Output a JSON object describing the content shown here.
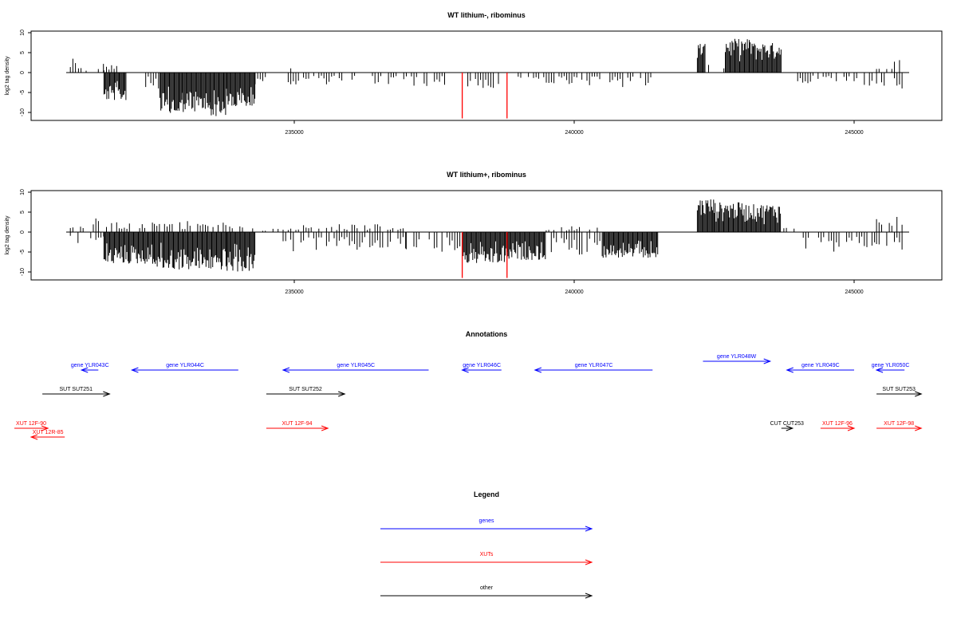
{
  "chart_data": [
    {
      "type": "bar",
      "title": "WT lithium-, ribominus",
      "xlabel": "",
      "ylabel": "log2 tag density",
      "xlim": [
        230000,
        246500
      ],
      "ylim": [
        -12,
        10.5
      ],
      "xticks": [
        235000,
        240000,
        245000
      ],
      "xtick_labels": [
        "235000",
        "240000",
        "245000"
      ],
      "yticks": [
        10,
        5,
        0,
        -5,
        -10
      ],
      "ytick_labels": [
        "10",
        "5",
        "0",
        "-5",
        "-10"
      ],
      "series": [
        {
          "color": "#000000",
          "segments": [
            {
              "x0": 231000,
              "x1": 231100,
              "y": 3.5
            },
            {
              "x0": 231100,
              "x1": 231300,
              "y": 1.5
            },
            {
              "x0": 231500,
              "x1": 231600,
              "y": 2.5
            },
            {
              "x0": 231600,
              "x1": 232000,
              "y": 2.0
            },
            {
              "x0": 231600,
              "x1": 232000,
              "y": -7.0
            },
            {
              "x0": 232300,
              "x1": 232600,
              "y": -4.0
            },
            {
              "x0": 232600,
              "x1": 233000,
              "y": -11.0
            },
            {
              "x0": 233000,
              "x1": 233500,
              "y": -10.0
            },
            {
              "x0": 233500,
              "x1": 233800,
              "y": -11.0
            },
            {
              "x0": 233800,
              "x1": 234300,
              "y": -9.0
            },
            {
              "x0": 234300,
              "x1": 234500,
              "y": -3.0
            },
            {
              "x0": 234800,
              "x1": 235000,
              "y": 2.0
            },
            {
              "x0": 234800,
              "x1": 236500,
              "y": -3.0
            },
            {
              "x0": 236500,
              "x1": 237700,
              "y": -3.5
            },
            {
              "x0": 238100,
              "x1": 238700,
              "y": -4.0
            },
            {
              "x0": 239000,
              "x1": 240000,
              "y": -3.5
            },
            {
              "x0": 240000,
              "x1": 241400,
              "y": -4.0
            },
            {
              "x0": 242200,
              "x1": 242350,
              "y": 7.5
            },
            {
              "x0": 242400,
              "x1": 242700,
              "y": 2.5
            },
            {
              "x0": 242700,
              "x1": 243200,
              "y": 8.5
            },
            {
              "x0": 243200,
              "x1": 243700,
              "y": 7.5
            },
            {
              "x0": 243900,
              "x1": 244500,
              "y": -3.0
            },
            {
              "x0": 244500,
              "x1": 245000,
              "y": -3.0
            },
            {
              "x0": 245000,
              "x1": 245400,
              "y": -3.5
            },
            {
              "x0": 245400,
              "x1": 245900,
              "y": 3.5
            },
            {
              "x0": 245400,
              "x1": 245900,
              "y": -4.5
            }
          ]
        },
        {
          "color": "#ff0000",
          "lines": [
            {
              "x": 238000,
              "y": -11.5
            },
            {
              "x": 238800,
              "y": -11.5
            }
          ]
        }
      ]
    },
    {
      "type": "bar",
      "title": "WT lithium+, ribominus",
      "xlabel": "",
      "ylabel": "log2 tag density",
      "xlim": [
        230000,
        246500
      ],
      "ylim": [
        -12,
        10.5
      ],
      "xticks": [
        235000,
        240000,
        245000
      ],
      "xtick_labels": [
        "235000",
        "240000",
        "245000"
      ],
      "yticks": [
        10,
        5,
        0,
        -5,
        -10
      ],
      "ytick_labels": [
        "10",
        "5",
        "0",
        "-5",
        "-10"
      ],
      "series": [
        {
          "color": "#000000",
          "segments": [
            {
              "x0": 231000,
              "x1": 231600,
              "y": 4.0
            },
            {
              "x0": 231000,
              "x1": 231600,
              "y": -3.0
            },
            {
              "x0": 231600,
              "x1": 232500,
              "y": 2.5
            },
            {
              "x0": 231600,
              "x1": 232500,
              "y": -8.0
            },
            {
              "x0": 232500,
              "x1": 233800,
              "y": 3.0
            },
            {
              "x0": 232500,
              "x1": 233800,
              "y": -9.5
            },
            {
              "x0": 233800,
              "x1": 234300,
              "y": 1.5
            },
            {
              "x0": 233800,
              "x1": 234300,
              "y": -10.0
            },
            {
              "x0": 234300,
              "x1": 234800,
              "y": 1.0
            },
            {
              "x0": 234800,
              "x1": 237000,
              "y": 2.0
            },
            {
              "x0": 234800,
              "x1": 237000,
              "y": -5.0
            },
            {
              "x0": 237000,
              "x1": 238000,
              "y": -5.0
            },
            {
              "x0": 238000,
              "x1": 238800,
              "y": -8.0
            },
            {
              "x0": 238800,
              "x1": 239500,
              "y": -7.0
            },
            {
              "x0": 239500,
              "x1": 240500,
              "y": 1.5
            },
            {
              "x0": 239500,
              "x1": 240500,
              "y": -6.0
            },
            {
              "x0": 240500,
              "x1": 241500,
              "y": -6.5
            },
            {
              "x0": 242200,
              "x1": 242500,
              "y": 8.5
            },
            {
              "x0": 242500,
              "x1": 243000,
              "y": 7.5
            },
            {
              "x0": 243000,
              "x1": 243700,
              "y": 7.0
            },
            {
              "x0": 243700,
              "x1": 244000,
              "y": 3.0
            },
            {
              "x0": 244000,
              "x1": 245000,
              "y": -5.0
            },
            {
              "x0": 245000,
              "x1": 245400,
              "y": -4.5
            },
            {
              "x0": 245400,
              "x1": 245900,
              "y": 5.0
            },
            {
              "x0": 245400,
              "x1": 245900,
              "y": -5.5
            }
          ]
        },
        {
          "color": "#ff0000",
          "lines": [
            {
              "x": 238000,
              "y": -11.5
            },
            {
              "x": 238800,
              "y": -11.5
            }
          ]
        }
      ]
    }
  ],
  "annotations": {
    "title": "Annotations",
    "genes": [
      {
        "label": "gene YLR043C",
        "start": 231500,
        "end": 231200,
        "row": 0
      },
      {
        "label": "gene YLR044C",
        "start": 234000,
        "end": 232100,
        "row": 0
      },
      {
        "label": "gene YLR045C",
        "start": 237400,
        "end": 234800,
        "row": 0
      },
      {
        "label": "gene YLR046C",
        "start": 238700,
        "end": 238000,
        "row": 0
      },
      {
        "label": "gene YLR047C",
        "start": 241400,
        "end": 239300,
        "row": 0
      },
      {
        "label": "gene YLR048W",
        "start": 242300,
        "end": 243500,
        "row": -1
      },
      {
        "label": "gene YLR049C",
        "start": 245000,
        "end": 243800,
        "row": 0
      },
      {
        "label": "gene YLR050C",
        "start": 245900,
        "end": 245400,
        "row": 0
      }
    ],
    "xuts": [
      {
        "label": "XUT 12F-90",
        "start": 230000,
        "end": 230600,
        "row": 2
      },
      {
        "label": "XUT 12R-85",
        "start": 230900,
        "end": 230300,
        "row": 3
      },
      {
        "label": "XUT 12F-94",
        "start": 234500,
        "end": 235600,
        "row": 2
      },
      {
        "label": "XUT 12F-96",
        "start": 244400,
        "end": 245000,
        "row": 2
      },
      {
        "label": "XUT 12F-98",
        "start": 245400,
        "end": 246200,
        "row": 2
      }
    ],
    "other": [
      {
        "label": "SUT SUT251",
        "start": 230500,
        "end": 231700,
        "row": 1
      },
      {
        "label": "SUT SUT252",
        "start": 234500,
        "end": 235900,
        "row": 1
      },
      {
        "label": "CUT CUT253",
        "start": 243700,
        "end": 243900,
        "row": 2
      },
      {
        "label": "SUT SUT253",
        "start": 245400,
        "end": 246200,
        "row": 1
      }
    ]
  },
  "legend": {
    "title": "Legend",
    "entries": [
      {
        "label": "genes",
        "color": "#0000ff"
      },
      {
        "label": "XUTs",
        "color": "#ff0000"
      },
      {
        "label": "other",
        "color": "#000000"
      }
    ]
  }
}
